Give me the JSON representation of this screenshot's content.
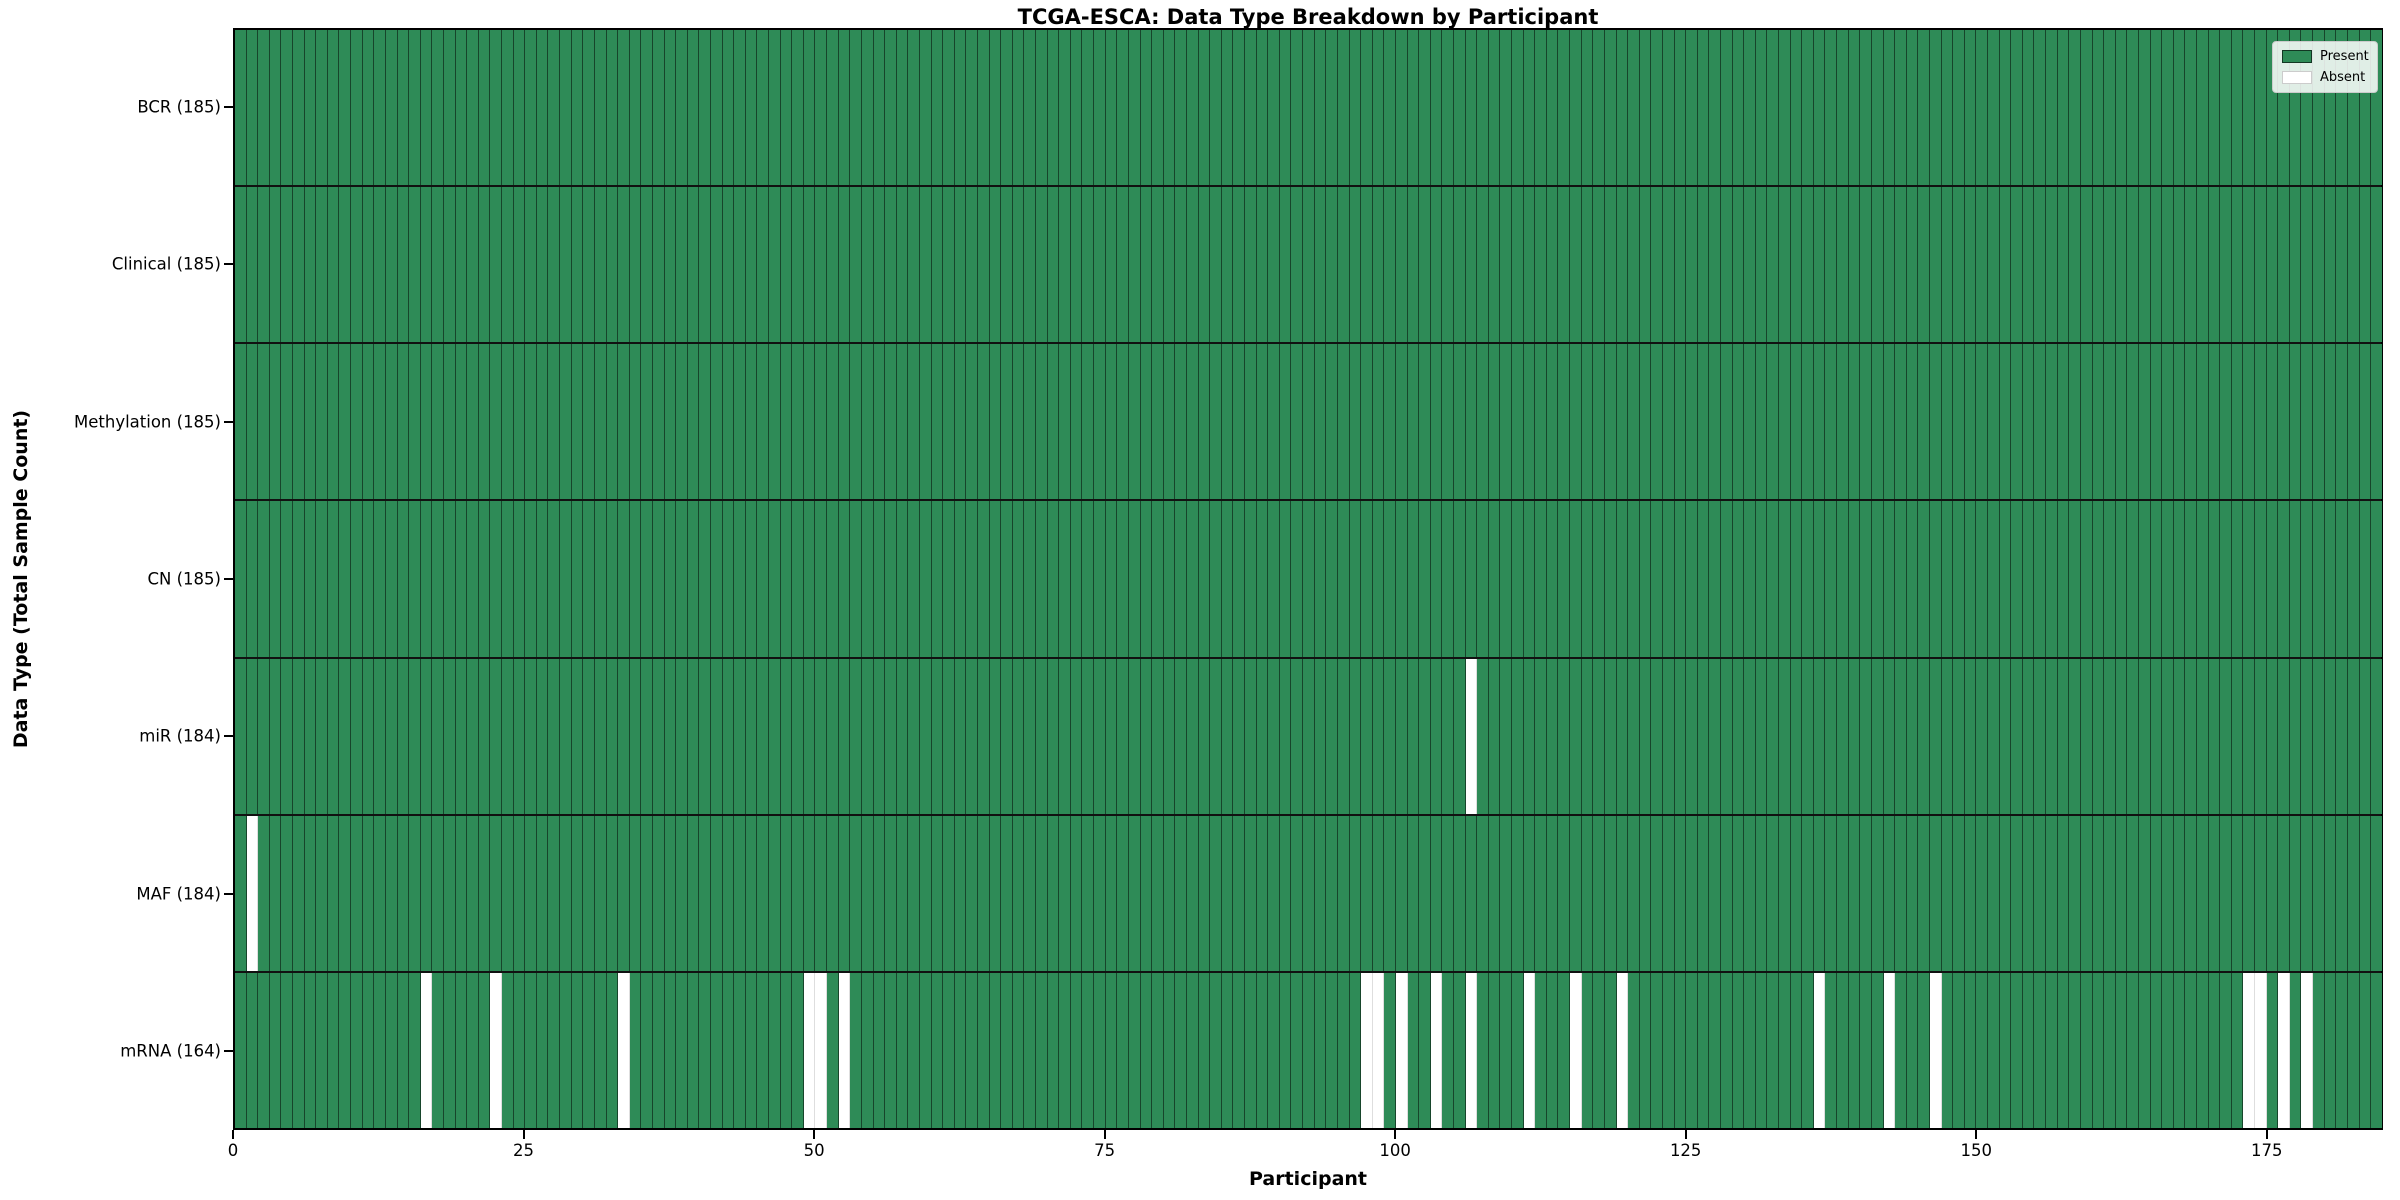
{
  "title": "TCGA-ESCA: Data Type Breakdown by Participant",
  "chart_data": {
    "type": "heatmap",
    "title": "TCGA-ESCA: Data Type Breakdown by Participant",
    "xlabel": "Participant",
    "ylabel": "Data Type (Total Sample Count)",
    "n_participants": 185,
    "x_axis_range": [
      0,
      185
    ],
    "x_ticks": [
      0,
      25,
      50,
      75,
      100,
      125,
      150,
      175
    ],
    "grid": false,
    "legend_position": "upper right",
    "legend": [
      {
        "name": "legend-item-present",
        "label": "Present",
        "color": "#2e8b57"
      },
      {
        "name": "legend-item-absent",
        "label": "Absent",
        "color": "#ffffff"
      }
    ],
    "colors": {
      "present": "#2e8b57",
      "absent": "#ffffff"
    },
    "rows": [
      {
        "label": "BCR (185)",
        "data_type": "BCR",
        "total_sample_count": 185,
        "absent_participants": []
      },
      {
        "label": "Clinical (185)",
        "data_type": "Clinical",
        "total_sample_count": 185,
        "absent_participants": []
      },
      {
        "label": "Methylation (185)",
        "data_type": "Methylation",
        "total_sample_count": 185,
        "absent_participants": []
      },
      {
        "label": "CN (185)",
        "data_type": "CN",
        "total_sample_count": 185,
        "absent_participants": []
      },
      {
        "label": "miR (184)",
        "data_type": "miR",
        "total_sample_count": 184,
        "absent_participants": [
          106
        ]
      },
      {
        "label": "MAF (184)",
        "data_type": "MAF",
        "total_sample_count": 184,
        "absent_participants": [
          1
        ]
      },
      {
        "label": "mRNA (164)",
        "data_type": "mRNA",
        "total_sample_count": 164,
        "absent_participants": [
          16,
          22,
          33,
          49,
          50,
          52,
          97,
          98,
          100,
          103,
          106,
          111,
          115,
          119,
          136,
          142,
          146,
          173,
          174,
          176,
          178
        ]
      }
    ]
  }
}
